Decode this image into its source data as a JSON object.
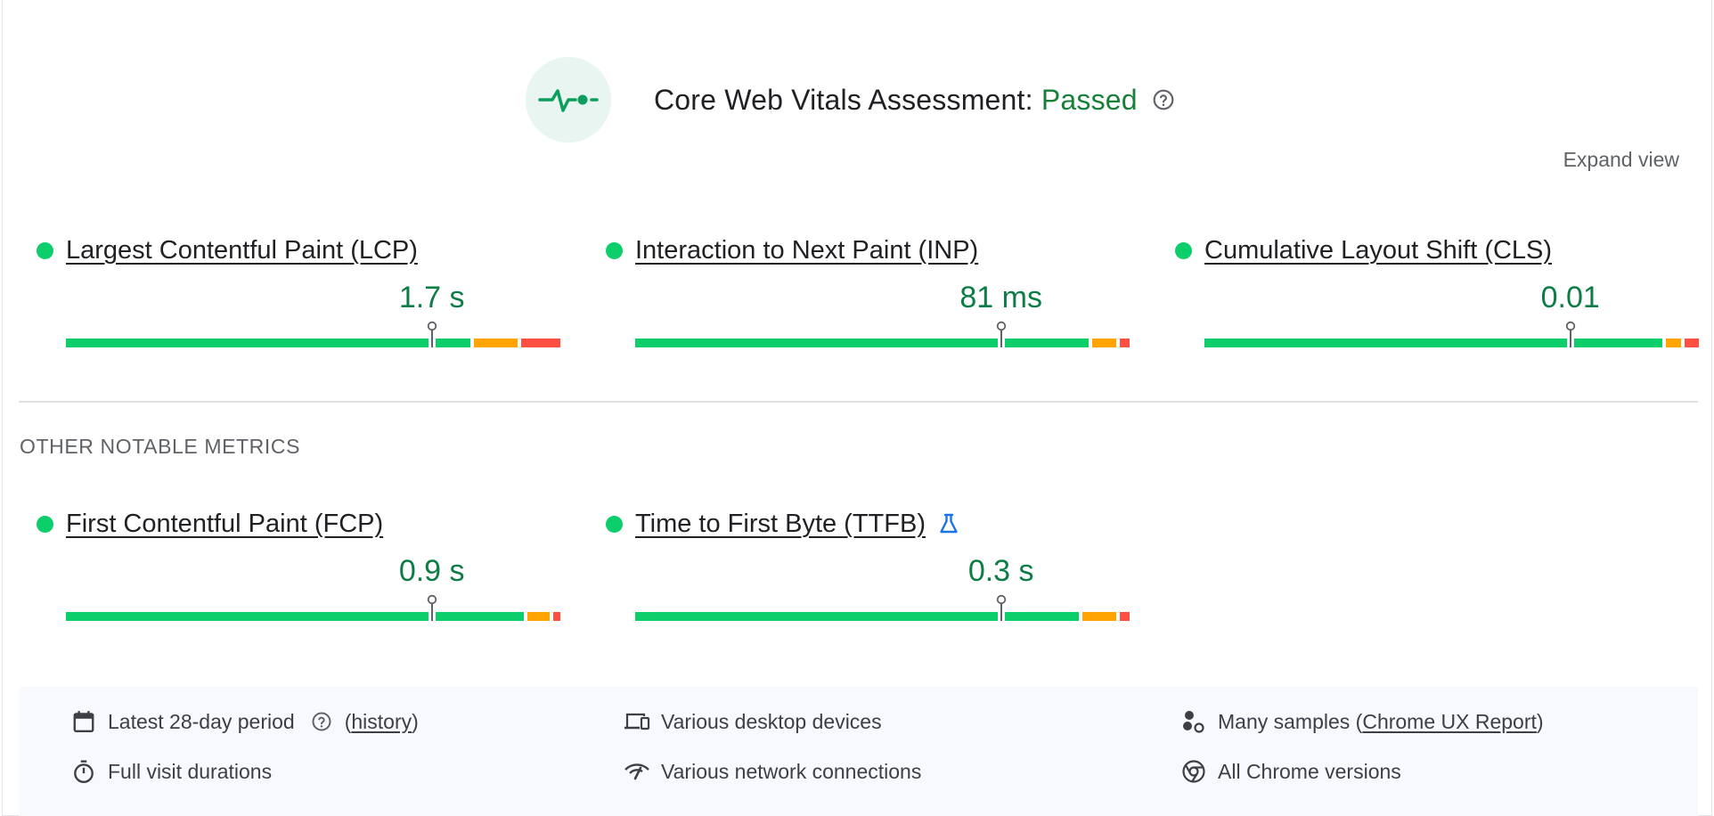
{
  "assessment": {
    "title": "Core Web Vitals Assessment:",
    "status": "Passed",
    "status_color": "#188038",
    "badge_icon": "heartbeat-icon",
    "help_icon": "help-circle-icon"
  },
  "expand_view_label": "Expand view",
  "core_metrics": [
    {
      "name": "Largest Contentful Paint (LCP)",
      "value": "1.7 s",
      "status": "good",
      "distribution": {
        "good": 0.83,
        "needs_improvement": 0.09,
        "poor": 0.08
      }
    },
    {
      "name": "Interaction to Next Paint (INP)",
      "value": "81 ms",
      "status": "good",
      "distribution": {
        "good": 0.93,
        "needs_improvement": 0.05,
        "poor": 0.02
      }
    },
    {
      "name": "Cumulative Layout Shift (CLS)",
      "value": "0.01",
      "status": "good",
      "distribution": {
        "good": 0.94,
        "needs_improvement": 0.03,
        "poor": 0.03
      }
    }
  ],
  "other_section_heading": "OTHER NOTABLE METRICS",
  "other_metrics": [
    {
      "name": "First Contentful Paint (FCP)",
      "value": "0.9 s",
      "status": "good",
      "distribution": {
        "good": 0.94,
        "needs_improvement": 0.045,
        "poor": 0.015
      }
    },
    {
      "name": "Time to First Byte (TTFB)",
      "value": "0.3 s",
      "status": "good",
      "lab_icon": "flask-icon",
      "distribution": {
        "good": 0.91,
        "needs_improvement": 0.07,
        "poor": 0.02
      }
    }
  ],
  "colors": {
    "good": "#0cce6b",
    "needs_improvement": "#ffa400",
    "poor": "#ff4e42",
    "value_text": "#0d7c45"
  },
  "footer": {
    "period": {
      "text": "Latest 28-day period",
      "help_icon": "help-circle-icon",
      "paren_open": "(",
      "link": "history",
      "paren_close": ")",
      "icon": "calendar-icon"
    },
    "devices": {
      "text": "Various desktop devices",
      "icon": "devices-icon"
    },
    "samples": {
      "text": "Many samples (",
      "link": "Chrome UX Report",
      "paren_close": ")",
      "icon": "samples-icon"
    },
    "durations": {
      "text": "Full visit durations",
      "icon": "stopwatch-icon"
    },
    "network": {
      "text": "Various network connections",
      "icon": "network-icon"
    },
    "chrome": {
      "text": "All Chrome versions",
      "icon": "chrome-icon"
    }
  }
}
